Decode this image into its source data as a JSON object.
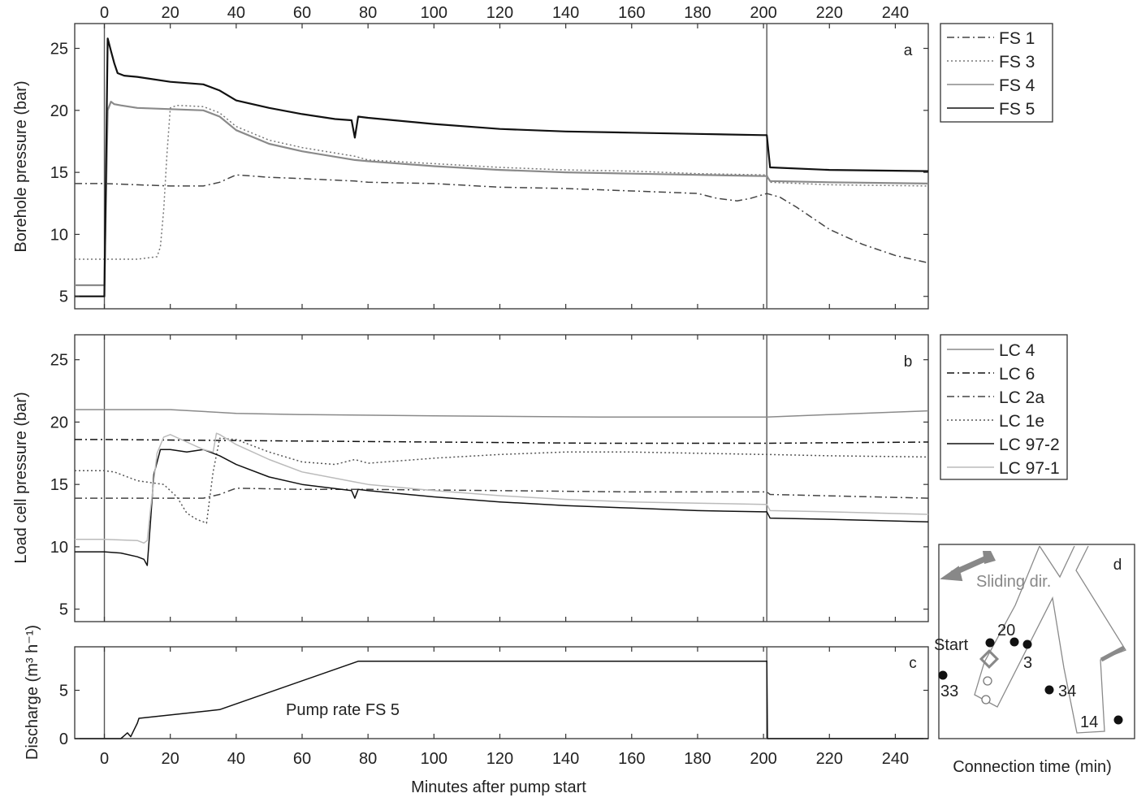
{
  "figure": {
    "xlabel": "Minutes after pump start",
    "x_ticks": [
      "0",
      "20",
      "40",
      "60",
      "80",
      "100",
      "120",
      "140",
      "160",
      "180",
      "200",
      "220",
      "240"
    ]
  },
  "chart_data": [
    {
      "panel": "a",
      "type": "line",
      "ylabel": "Borehole pressure (bar)",
      "xlim": [
        -9,
        250
      ],
      "ylim": [
        4,
        27
      ],
      "y_ticks": [
        "5",
        "10",
        "15",
        "20",
        "25"
      ],
      "markers": [
        0,
        201
      ],
      "legend_position": "right, outside",
      "series": [
        {
          "name": "FS 1",
          "style": "dash-dot",
          "color": "#444444",
          "x": [
            -9,
            0,
            10,
            20,
            30,
            35,
            40,
            50,
            60,
            76,
            80,
            100,
            120,
            140,
            160,
            170,
            180,
            186,
            192,
            196,
            201,
            205,
            210,
            220,
            230,
            240,
            250
          ],
          "y": [
            14.1,
            14.1,
            14.0,
            13.9,
            13.9,
            14.2,
            14.8,
            14.6,
            14.5,
            14.3,
            14.2,
            14.1,
            13.8,
            13.7,
            13.5,
            13.4,
            13.3,
            12.9,
            12.7,
            12.9,
            13.3,
            13.0,
            12.2,
            10.4,
            9.2,
            8.3,
            7.7
          ]
        },
        {
          "name": "FS 3",
          "style": "dotted",
          "color": "#777777",
          "x": [
            -9,
            0,
            2,
            10,
            16,
            17,
            18,
            19,
            20,
            22,
            30,
            35,
            40,
            50,
            60,
            76,
            80,
            100,
            120,
            140,
            160,
            180,
            200,
            201,
            202,
            220,
            250
          ],
          "y": [
            8.0,
            8.0,
            8.0,
            8.0,
            8.2,
            9.0,
            12.0,
            16.5,
            20.2,
            20.4,
            20.3,
            19.8,
            18.7,
            17.6,
            17.0,
            16.3,
            16.0,
            15.7,
            15.4,
            15.2,
            15.1,
            14.9,
            14.8,
            14.8,
            14.2,
            14.0,
            13.9
          ]
        },
        {
          "name": "FS 4",
          "style": "solid",
          "color": "#8a8a8a",
          "x": [
            -9,
            0,
            1,
            2,
            3,
            5,
            10,
            20,
            30,
            35,
            40,
            50,
            60,
            76,
            80,
            100,
            120,
            140,
            160,
            180,
            200,
            201,
            202,
            220,
            250
          ],
          "y": [
            5.9,
            5.9,
            20.0,
            20.7,
            20.5,
            20.4,
            20.2,
            20.1,
            20.0,
            19.5,
            18.4,
            17.3,
            16.7,
            16.0,
            15.9,
            15.5,
            15.2,
            15.0,
            14.9,
            14.8,
            14.7,
            14.7,
            14.3,
            14.2,
            14.1
          ]
        },
        {
          "name": "FS 5",
          "style": "solid",
          "color": "#111111",
          "x": [
            -9,
            0,
            1,
            2,
            3,
            4,
            6,
            10,
            20,
            30,
            35,
            40,
            50,
            60,
            70,
            75,
            76,
            77,
            80,
            100,
            120,
            140,
            160,
            180,
            200,
            201,
            202,
            220,
            250
          ],
          "y": [
            5.0,
            5.0,
            25.8,
            24.8,
            23.8,
            23.0,
            22.8,
            22.7,
            22.3,
            22.1,
            21.6,
            20.8,
            20.2,
            19.7,
            19.3,
            19.2,
            17.8,
            19.5,
            19.4,
            18.9,
            18.5,
            18.3,
            18.2,
            18.1,
            18.0,
            18.0,
            15.4,
            15.2,
            15.1
          ]
        }
      ]
    },
    {
      "panel": "b",
      "type": "line",
      "ylabel": "Load cell pressure (bar)",
      "xlim": [
        -9,
        250
      ],
      "ylim": [
        4,
        27
      ],
      "y_ticks": [
        "5",
        "10",
        "15",
        "20",
        "25"
      ],
      "markers": [
        0,
        201
      ],
      "legend_position": "right, outside",
      "series": [
        {
          "name": "LC 4",
          "style": "solid",
          "color": "#8a8a8a",
          "x": [
            -9,
            0,
            20,
            40,
            60,
            100,
            150,
            200,
            201,
            220,
            250
          ],
          "y": [
            21.0,
            21.0,
            21.0,
            20.7,
            20.6,
            20.5,
            20.4,
            20.4,
            20.4,
            20.6,
            20.9
          ]
        },
        {
          "name": "LC 6",
          "style": "dash-dot",
          "color": "#111111",
          "x": [
            -9,
            0,
            50,
            100,
            150,
            200,
            201,
            250
          ],
          "y": [
            18.6,
            18.6,
            18.5,
            18.4,
            18.3,
            18.3,
            18.3,
            18.4
          ]
        },
        {
          "name": "LC 2a",
          "style": "dash-dot",
          "color": "#444444",
          "x": [
            -9,
            0,
            20,
            30,
            35,
            40,
            60,
            80,
            120,
            160,
            200,
            201,
            202,
            250
          ],
          "y": [
            13.9,
            13.9,
            13.9,
            13.9,
            14.2,
            14.7,
            14.6,
            14.6,
            14.5,
            14.4,
            14.4,
            14.4,
            14.2,
            13.9
          ]
        },
        {
          "name": "LC 1e",
          "style": "dotted",
          "color": "#555555",
          "x": [
            -9,
            0,
            3,
            10,
            18,
            22,
            25,
            28,
            31,
            33,
            35,
            40,
            50,
            60,
            70,
            76,
            80,
            100,
            120,
            140,
            160,
            180,
            200,
            201,
            220,
            250
          ],
          "y": [
            16.1,
            16.1,
            16.0,
            15.3,
            15.0,
            14.0,
            12.7,
            12.2,
            11.9,
            16.0,
            18.7,
            18.6,
            17.6,
            16.8,
            16.6,
            17.0,
            16.7,
            17.1,
            17.4,
            17.6,
            17.6,
            17.5,
            17.4,
            17.4,
            17.3,
            17.2
          ]
        },
        {
          "name": "LC 97-2",
          "style": "solid",
          "color": "#111111",
          "x": [
            -9,
            0,
            5,
            10,
            12,
            13,
            14,
            15,
            17,
            20,
            25,
            30,
            35,
            40,
            50,
            60,
            75,
            76,
            77,
            80,
            100,
            120,
            140,
            160,
            180,
            200,
            201,
            202,
            220,
            250
          ],
          "y": [
            9.6,
            9.6,
            9.5,
            9.2,
            9.0,
            8.5,
            12.0,
            15.8,
            17.8,
            17.8,
            17.6,
            17.8,
            17.3,
            16.6,
            15.6,
            15.0,
            14.5,
            13.9,
            14.6,
            14.5,
            14.0,
            13.6,
            13.3,
            13.1,
            12.9,
            12.8,
            12.8,
            12.3,
            12.2,
            12.0
          ]
        },
        {
          "name": "LC 97-1",
          "style": "solid",
          "color": "#bbbbbb",
          "x": [
            -9,
            0,
            10,
            12,
            13,
            14,
            16,
            18,
            20,
            25,
            30,
            33,
            34,
            35,
            40,
            50,
            60,
            76,
            80,
            100,
            120,
            140,
            160,
            180,
            200,
            201,
            202,
            220,
            250
          ],
          "y": [
            10.6,
            10.6,
            10.5,
            10.3,
            10.5,
            13.0,
            17.5,
            18.8,
            19.0,
            18.4,
            17.8,
            17.6,
            19.1,
            19.0,
            18.2,
            17.0,
            16.0,
            15.2,
            15.0,
            14.5,
            14.1,
            13.8,
            13.6,
            13.5,
            13.4,
            13.4,
            12.9,
            12.8,
            12.6
          ]
        }
      ]
    },
    {
      "panel": "c",
      "type": "line",
      "ylabel": "Discharge (m³ h⁻¹)",
      "xlim": [
        -9,
        250
      ],
      "ylim": [
        0,
        9.5
      ],
      "y_ticks": [
        "0",
        "5"
      ],
      "markers": [
        0,
        201
      ],
      "annotation": "Pump rate FS 5",
      "series": [
        {
          "name": "Pump rate FS 5",
          "style": "solid",
          "color": "#111111",
          "x": [
            -9,
            5,
            6,
            7,
            8,
            9,
            10,
            10.5,
            35,
            77,
            201,
            201.2,
            250
          ],
          "y": [
            0,
            0,
            0.3,
            0.6,
            0.2,
            0.9,
            1.6,
            2.1,
            3.0,
            8.0,
            8.0,
            0,
            0
          ]
        }
      ]
    }
  ],
  "map_panel": {
    "letter": "d",
    "sliding_label": "Sliding dir.",
    "caption": "Connection time (min)",
    "points": [
      {
        "label": "Start",
        "filled": true
      },
      {
        "label": "20",
        "filled": true
      },
      {
        "label": "3",
        "filled": true
      },
      {
        "label": "33",
        "filled": true
      },
      {
        "label": "34",
        "filled": true
      },
      {
        "label": "14",
        "filled": true
      },
      {
        "label": "",
        "filled": false
      },
      {
        "label": "",
        "filled": false
      }
    ]
  },
  "colors": {
    "axis": "#333333",
    "black_series": "#111111",
    "grey_series": "#8a8a8a",
    "light_series": "#bbbbbb",
    "map_arrow": "#888888"
  }
}
